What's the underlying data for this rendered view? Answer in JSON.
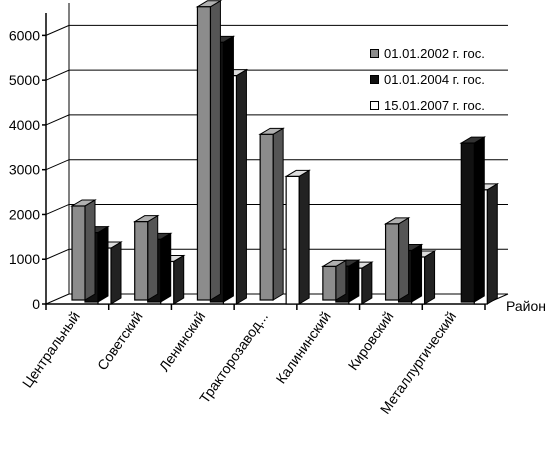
{
  "chart_data": {
    "type": "bar",
    "categories": [
      "Центральный",
      "Советский",
      "Ленинский",
      "Тракторозавод...",
      "Калининский",
      "Кировский",
      "Металлургический"
    ],
    "series": [
      {
        "name": "01.01.2002 г. гос.",
        "values": [
          2100,
          1750,
          6550,
          3700,
          750,
          1700,
          0
        ],
        "color": "#8c8c8c"
      },
      {
        "name": "01.01.2004 г. гос.",
        "values": [
          1550,
          1400,
          5800,
          0,
          800,
          1150,
          3550
        ],
        "color": "#111111"
      },
      {
        "name": "15.01.2007 г. гос.",
        "values": [
          1250,
          950,
          5100,
          2850,
          800,
          1050,
          2550
        ],
        "color": "#ffffff"
      }
    ],
    "y_ticks": [
      "0",
      "1000",
      "2000",
      "3000",
      "4000",
      "5000",
      "6000"
    ],
    "xlabel": "Район",
    "ylim": [
      0,
      6500
    ],
    "legend_position": "top-right",
    "grid": true
  }
}
